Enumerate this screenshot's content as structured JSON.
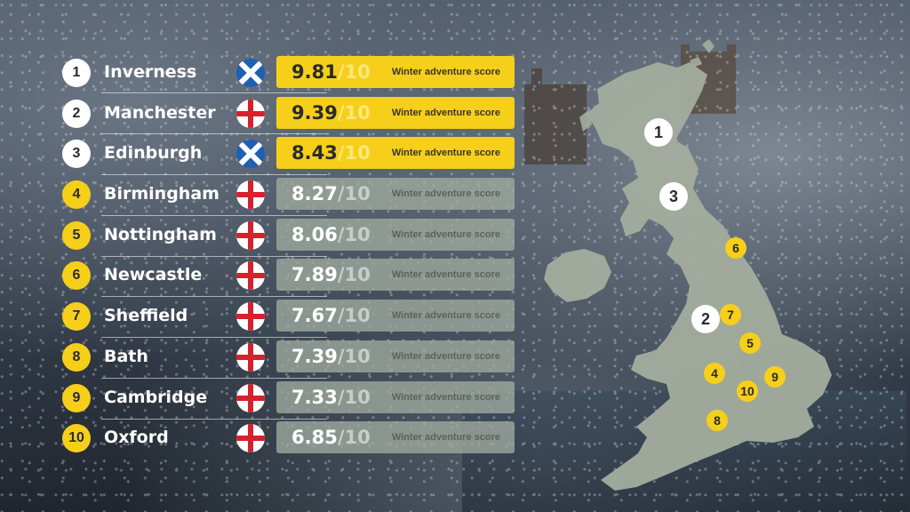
{
  "score_label": "Winter adventure score",
  "out_of": "/10",
  "colors": {
    "gold": "#f6cf1a",
    "grey_card": "#a0aaa0",
    "map_land": "#a3ad9e"
  },
  "rankings": [
    {
      "rank": "1",
      "city": "Inverness",
      "country": "Scotland",
      "flag": "scotland-flag-icon",
      "score": "9.81"
    },
    {
      "rank": "2",
      "city": "Manchester",
      "country": "England",
      "flag": "england-flag-icon",
      "score": "9.39"
    },
    {
      "rank": "3",
      "city": "Edinburgh",
      "country": "Scotland",
      "flag": "scotland-flag-icon",
      "score": "8.43"
    },
    {
      "rank": "4",
      "city": "Birmingham",
      "country": "England",
      "flag": "england-flag-icon",
      "score": "8.27"
    },
    {
      "rank": "5",
      "city": "Nottingham",
      "country": "England",
      "flag": "england-flag-icon",
      "score": "8.06"
    },
    {
      "rank": "6",
      "city": "Newcastle",
      "country": "England",
      "flag": "england-flag-icon",
      "score": "7.89"
    },
    {
      "rank": "7",
      "city": "Sheffield",
      "country": "England",
      "flag": "england-flag-icon",
      "score": "7.67"
    },
    {
      "rank": "8",
      "city": "Bath",
      "country": "England",
      "flag": "england-flag-icon",
      "score": "7.39"
    },
    {
      "rank": "9",
      "city": "Cambridge",
      "country": "England",
      "flag": "england-flag-icon",
      "score": "7.33"
    },
    {
      "rank": "10",
      "city": "Oxford",
      "country": "England",
      "flag": "england-flag-icon",
      "score": "6.85"
    }
  ],
  "map_markers": [
    "1",
    "2",
    "3",
    "4",
    "5",
    "6",
    "7",
    "8",
    "9",
    "10"
  ]
}
